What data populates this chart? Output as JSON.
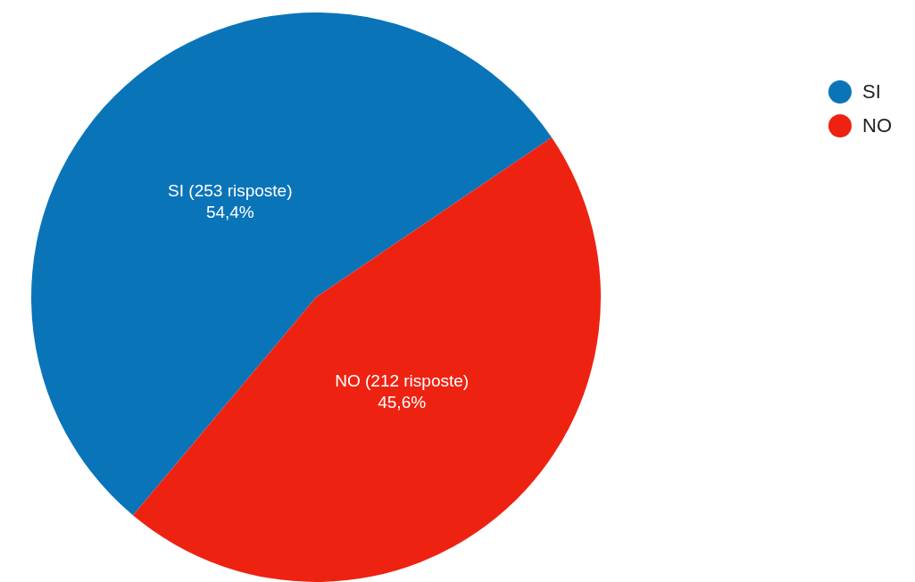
{
  "chart_data": {
    "type": "pie",
    "categories": [
      "SI",
      "NO"
    ],
    "values": [
      253,
      212
    ],
    "value_labels": [
      "SI (253 risposte)\n54,4%",
      "NO (212 risposte)\n45,6%"
    ],
    "colors": [
      "#0a74b9",
      "#ee2211"
    ],
    "legend": "top right"
  }
}
